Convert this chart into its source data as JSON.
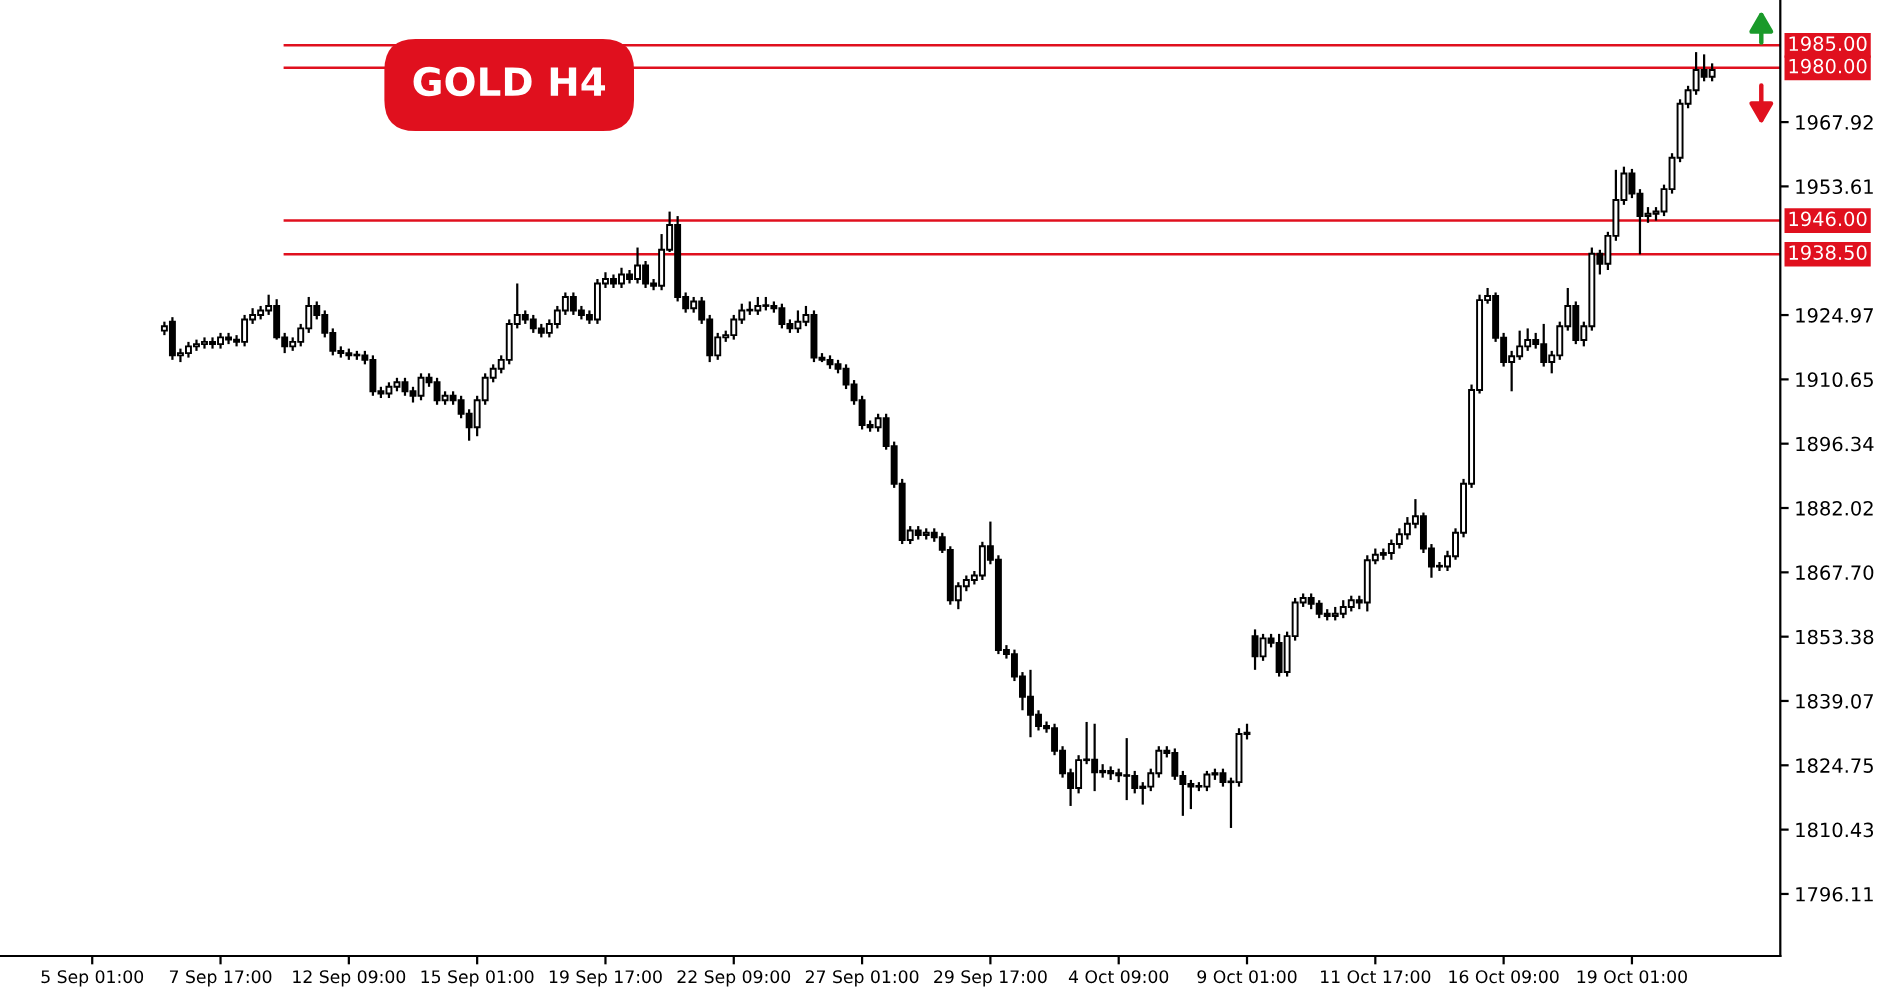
{
  "chart_data": {
    "type": "candlestick",
    "title": "GOLD H4",
    "categories": [
      null,
      null,
      null,
      null,
      null,
      null,
      null,
      null,
      null,
      null,
      null,
      "5 Sep 01:00",
      null,
      null,
      null,
      null,
      null,
      null,
      null,
      null,
      null,
      null,
      null,
      null,
      null,
      null,
      null,
      "7 Sep 17:00",
      null,
      null,
      null,
      null,
      null,
      null,
      null,
      null,
      null,
      null,
      null,
      null,
      null,
      null,
      null,
      "12 Sep 09:00",
      null,
      null,
      null,
      null,
      null,
      null,
      null,
      null,
      null,
      null,
      null,
      null,
      null,
      null,
      null,
      "15 Sep 01:00",
      null,
      null,
      null,
      null,
      null,
      null,
      null,
      null,
      null,
      null,
      null,
      null,
      null,
      null,
      null,
      "19 Sep 17:00",
      null,
      null,
      null,
      null,
      null,
      null,
      null,
      null,
      null,
      null,
      null,
      null,
      null,
      null,
      null,
      "22 Sep 09:00",
      null,
      null,
      null,
      null,
      null,
      null,
      null,
      null,
      null,
      null,
      null,
      null,
      null,
      null,
      null,
      "27 Sep 01:00",
      null,
      null,
      null,
      null,
      null,
      null,
      null,
      null,
      null,
      null,
      null,
      null,
      null,
      null,
      null,
      "29 Sep 17:00",
      null,
      null,
      null,
      null,
      null,
      null,
      null,
      null,
      null,
      null,
      null,
      null,
      null,
      null,
      null,
      "4 Oct 09:00",
      null,
      null,
      null,
      null,
      null,
      null,
      null,
      null,
      null,
      null,
      null,
      null,
      null,
      null,
      null,
      "9 Oct 01:00",
      null,
      null,
      null,
      null,
      null,
      null,
      null,
      null,
      null,
      null,
      null,
      null,
      null,
      null,
      null,
      "11 Oct 17:00",
      null,
      null,
      null,
      null,
      null,
      null,
      null,
      null,
      null,
      null,
      null,
      null,
      null,
      null,
      null,
      "16 Oct 09:00",
      null,
      null,
      null,
      null,
      null,
      null,
      null,
      null,
      null,
      null,
      null,
      null,
      null,
      null,
      null,
      "19 Oct 01:00",
      null,
      null,
      null,
      null,
      null,
      null,
      null,
      null,
      null,
      null,
      null,
      null,
      null,
      null,
      null,
      null,
      null,
      null
    ],
    "ohlc": [
      null,
      null,
      null,
      null,
      null,
      null,
      null,
      null,
      null,
      null,
      null,
      null,
      null,
      null,
      null,
      null,
      null,
      null,
      null,
      null,
      [
        1921.5,
        1923.5,
        1920.5,
        1922.5
      ],
      [
        1923.5,
        1924.5,
        1915,
        1916
      ],
      [
        1916,
        1917.5,
        1914.5,
        1916.5
      ],
      [
        1916.5,
        1919,
        1915.5,
        1918
      ],
      [
        1918,
        1919.5,
        1917,
        1918.5
      ],
      [
        1918.5,
        1920,
        1917.5,
        1919
      ],
      [
        1919,
        1920,
        1917.5,
        1918.5
      ],
      [
        1918.5,
        1921,
        1917.5,
        1920
      ],
      [
        1920,
        1921,
        1918.5,
        1919.5
      ],
      [
        1919.5,
        1920.5,
        1918,
        1919
      ],
      [
        1919,
        1925,
        1918,
        1924
      ],
      [
        1924,
        1926.5,
        1923,
        1925
      ],
      [
        1925,
        1927,
        1924,
        1926
      ],
      [
        1926,
        1929.5,
        1925,
        1927
      ],
      [
        1927,
        1928.5,
        1919.5,
        1920
      ],
      [
        1920,
        1921,
        1916.5,
        1918
      ],
      [
        1918,
        1920,
        1917,
        1919
      ],
      [
        1919,
        1923,
        1918,
        1922
      ],
      [
        1922,
        1929,
        1921,
        1927
      ],
      [
        1927,
        1928,
        1924,
        1925
      ],
      [
        1925,
        1926,
        1920,
        1921
      ],
      [
        1921,
        1922,
        1916,
        1917
      ],
      [
        1917,
        1918,
        1915.5,
        1916.5
      ],
      [
        1916.5,
        1917.5,
        1915,
        1916
      ],
      [
        1916,
        1917,
        1915,
        1916
      ],
      [
        1916,
        1917,
        1914,
        1915
      ],
      [
        1915,
        1916,
        1907,
        1908
      ],
      [
        1908,
        1909,
        1906.5,
        1907.5
      ],
      [
        1907.5,
        1910,
        1906.5,
        1909
      ],
      [
        1909,
        1911,
        1908,
        1910
      ],
      [
        1910,
        1911,
        1907,
        1908
      ],
      [
        1908,
        1909,
        1905.5,
        1907
      ],
      [
        1907,
        1912,
        1906,
        1911
      ],
      [
        1911,
        1912,
        1909,
        1910
      ],
      [
        1910,
        1911,
        1905,
        1906
      ],
      [
        1906,
        1908,
        1905,
        1907
      ],
      [
        1907,
        1908,
        1905,
        1906
      ],
      [
        1906,
        1907,
        1902,
        1903
      ],
      [
        1903,
        1904,
        1897,
        1900
      ],
      [
        1900,
        1907,
        1898,
        1906
      ],
      [
        1906,
        1912,
        1905,
        1911
      ],
      [
        1911,
        1914,
        1910,
        1913
      ],
      [
        1913,
        1916,
        1912,
        1915
      ],
      [
        1915,
        1924,
        1914,
        1923
      ],
      [
        1923,
        1932,
        1922,
        1925
      ],
      [
        1925,
        1926,
        1923,
        1924
      ],
      [
        1924,
        1925,
        1921,
        1922
      ],
      [
        1922,
        1923,
        1920,
        1921
      ],
      [
        1921,
        1924,
        1920,
        1923
      ],
      [
        1923,
        1927,
        1922,
        1926
      ],
      [
        1926,
        1930,
        1925,
        1929
      ],
      [
        1929,
        1930,
        1925,
        1926
      ],
      [
        1926,
        1927,
        1924,
        1925
      ],
      [
        1925,
        1926,
        1923,
        1924
      ],
      [
        1924,
        1933,
        1923,
        1932
      ],
      [
        1932,
        1934.5,
        1931,
        1933
      ],
      [
        1933,
        1934,
        1931,
        1932
      ],
      [
        1932,
        1935.5,
        1931,
        1934
      ],
      [
        1934,
        1935,
        1932,
        1933
      ],
      [
        1933,
        1940,
        1932,
        1936
      ],
      [
        1936,
        1937,
        1931,
        1932
      ],
      [
        1932,
        1933,
        1930.5,
        1931.5
      ],
      [
        1931.5,
        1943,
        1930.5,
        1939.5
      ],
      [
        1939.5,
        1948,
        1939,
        1945
      ],
      [
        1945,
        1947,
        1928,
        1929
      ],
      [
        1929,
        1930,
        1925.5,
        1926.5
      ],
      [
        1926.5,
        1929,
        1925.5,
        1928
      ],
      [
        1928,
        1929,
        1923,
        1924
      ],
      [
        1924,
        1925,
        1914.5,
        1916
      ],
      [
        1916,
        1921,
        1915,
        1920
      ],
      [
        1920,
        1921.5,
        1919,
        1920.5
      ],
      [
        1920.5,
        1925,
        1919.5,
        1924
      ],
      [
        1924,
        1927.5,
        1923,
        1926
      ],
      [
        1926,
        1928,
        1925,
        1926
      ],
      [
        1926,
        1929,
        1925,
        1927
      ],
      [
        1927,
        1929,
        1926,
        1927
      ],
      [
        1927,
        1928,
        1925.5,
        1926.5
      ],
      [
        1926.5,
        1927.5,
        1922,
        1923
      ],
      [
        1923,
        1924,
        1921,
        1922
      ],
      [
        1922,
        1926,
        1921,
        1923.5
      ],
      [
        1923.5,
        1927,
        1922.5,
        1925
      ],
      [
        1925,
        1926,
        1914.5,
        1915.5
      ],
      [
        1915.5,
        1916.5,
        1914.5,
        1915
      ],
      [
        1915,
        1916,
        1913,
        1914
      ],
      [
        1914,
        1915,
        1912,
        1913
      ],
      [
        1913,
        1914,
        1908.5,
        1909.5
      ],
      [
        1909.5,
        1910.5,
        1905,
        1906
      ],
      [
        1906,
        1907,
        1899.5,
        1900.5
      ],
      [
        1900.5,
        1901.5,
        1899,
        1900
      ],
      [
        1900,
        1903,
        1899,
        1902
      ],
      [
        1902,
        1903,
        1895,
        1895.8
      ],
      [
        1895.8,
        1896.8,
        1886.5,
        1887.4
      ],
      [
        1887.4,
        1888.5,
        1874,
        1874.9
      ],
      [
        1874.9,
        1878,
        1874,
        1877
      ],
      [
        1877,
        1878,
        1875,
        1876
      ],
      [
        1876,
        1877.5,
        1875,
        1876.5
      ],
      [
        1876.5,
        1877.5,
        1874.5,
        1875.5
      ],
      [
        1875.5,
        1876.5,
        1872,
        1872.7
      ],
      [
        1872.7,
        1873.5,
        1860.5,
        1861.5
      ],
      [
        1861.5,
        1865.5,
        1859.5,
        1864.6
      ],
      [
        1864.6,
        1867,
        1863.5,
        1866
      ],
      [
        1866,
        1868,
        1865,
        1867
      ],
      [
        1867,
        1874.5,
        1866,
        1873.5
      ],
      [
        1873.5,
        1879,
        1869.5,
        1870.5
      ],
      [
        1870.5,
        1871.5,
        1849.5,
        1850.4
      ],
      [
        1850.4,
        1851.5,
        1848.5,
        1849.5
      ],
      [
        1849.5,
        1850.5,
        1843.5,
        1844.5
      ],
      [
        1844.5,
        1845.5,
        1837,
        1840
      ],
      [
        1840,
        1846,
        1831,
        1836
      ],
      [
        1836,
        1837,
        1832.5,
        1833.5
      ],
      [
        1833.5,
        1834.5,
        1832,
        1833
      ],
      [
        1833,
        1834,
        1827,
        1828
      ],
      [
        1828,
        1829,
        1822,
        1823
      ],
      [
        1823,
        1824,
        1815.7,
        1819.7
      ],
      [
        1819.7,
        1827,
        1818.5,
        1825.9
      ],
      [
        1825.9,
        1834.4,
        1825,
        1826
      ],
      [
        1826,
        1834,
        1819,
        1823.2
      ],
      [
        1823.2,
        1825,
        1822,
        1823.5
      ],
      [
        1823.5,
        1824.5,
        1821.5,
        1823
      ],
      [
        1823,
        1824,
        1821,
        1822.5
      ],
      [
        1822.5,
        1830.8,
        1817,
        1822.4
      ],
      [
        1822.4,
        1823.5,
        1818.5,
        1819.7
      ],
      [
        1819.7,
        1821,
        1816,
        1820
      ],
      [
        1820,
        1824,
        1819,
        1823
      ],
      [
        1823,
        1829,
        1822,
        1828
      ],
      [
        1828,
        1829,
        1826.5,
        1827.5
      ],
      [
        1827.5,
        1828.5,
        1821.5,
        1822.4
      ],
      [
        1822.4,
        1823.5,
        1813.5,
        1820.6
      ],
      [
        1820.6,
        1821.5,
        1815,
        1820
      ],
      [
        1820,
        1821,
        1819,
        1820
      ],
      [
        1820,
        1823.5,
        1819,
        1822.7
      ],
      [
        1822.7,
        1824,
        1821.5,
        1823
      ],
      [
        1823,
        1824,
        1820,
        1821
      ],
      [
        1821,
        1822,
        1810.8,
        1821
      ],
      [
        1821,
        1833,
        1820,
        1831.7
      ],
      [
        1831.7,
        1834,
        1830.5,
        1832
      ],
      [
        1853.5,
        1855,
        1846,
        1849
      ],
      [
        1849,
        1854,
        1848,
        1853
      ],
      [
        1853,
        1854,
        1851,
        1852
      ],
      [
        1852,
        1854,
        1844.5,
        1845.5
      ],
      [
        1845.5,
        1854.5,
        1844.5,
        1853.5
      ],
      [
        1853.5,
        1862,
        1852.5,
        1861
      ],
      [
        1861,
        1863,
        1860,
        1862
      ],
      [
        1862,
        1863,
        1859.5,
        1860.7
      ],
      [
        1860.7,
        1861.5,
        1857.5,
        1858.5
      ],
      [
        1858.5,
        1859.5,
        1857,
        1858
      ],
      [
        1858,
        1860,
        1857,
        1858.5
      ],
      [
        1858.5,
        1861.5,
        1857.5,
        1860
      ],
      [
        1860,
        1862.5,
        1859,
        1861.5
      ],
      [
        1861.5,
        1862.5,
        1859.5,
        1861
      ],
      [
        1861,
        1871.5,
        1859,
        1870.4
      ],
      [
        1870.4,
        1873,
        1869.5,
        1871.6
      ],
      [
        1871.6,
        1873,
        1870.5,
        1872
      ],
      [
        1872,
        1875,
        1870.5,
        1874
      ],
      [
        1874,
        1877.5,
        1873,
        1876.2
      ],
      [
        1876.2,
        1880,
        1875,
        1878.5
      ],
      [
        1878.5,
        1884,
        1877.5,
        1880.2
      ],
      [
        1880.2,
        1881,
        1872,
        1873
      ],
      [
        1873,
        1874,
        1866.5,
        1869
      ],
      [
        1869,
        1870,
        1868,
        1869
      ],
      [
        1869,
        1872.5,
        1868,
        1871.3
      ],
      [
        1871.3,
        1877.5,
        1870.5,
        1876.5
      ],
      [
        1876.5,
        1888.5,
        1875.5,
        1887.4
      ],
      [
        1887.4,
        1909.5,
        1886.5,
        1908.3
      ],
      [
        1908.3,
        1929.5,
        1907.5,
        1928.3
      ],
      [
        1928.3,
        1931,
        1927.5,
        1929.2
      ],
      [
        1929.2,
        1930,
        1919,
        1919.9
      ],
      [
        1919.9,
        1921,
        1913.5,
        1914.5
      ],
      [
        1914.5,
        1917,
        1908,
        1915.8
      ],
      [
        1915.8,
        1921.5,
        1915,
        1918
      ],
      [
        1918,
        1922,
        1917,
        1919.4
      ],
      [
        1919.4,
        1921,
        1917.5,
        1918.5
      ],
      [
        1918.5,
        1923,
        1913.5,
        1914.5
      ],
      [
        1914.5,
        1917,
        1912,
        1916
      ],
      [
        1916,
        1923.5,
        1915,
        1922.5
      ],
      [
        1922.5,
        1931,
        1921.5,
        1927
      ],
      [
        1927,
        1928,
        1918.5,
        1919.4
      ],
      [
        1919.4,
        1923.5,
        1918,
        1922.5
      ],
      [
        1922.5,
        1940,
        1921.5,
        1938.6
      ],
      [
        1938.6,
        1939.5,
        1934,
        1936.4
      ],
      [
        1936.4,
        1943.5,
        1935,
        1942.6
      ],
      [
        1942.6,
        1957.3,
        1941.5,
        1950.6
      ],
      [
        1950.6,
        1958,
        1949.5,
        1956.5
      ],
      [
        1956.5,
        1957.5,
        1951,
        1952
      ],
      [
        1952,
        1953,
        1938.5,
        1947
      ],
      [
        1947,
        1949,
        1945.5,
        1947.5
      ],
      [
        1947.5,
        1949,
        1946,
        1948
      ],
      [
        1948,
        1954,
        1947,
        1953
      ],
      [
        1953,
        1961,
        1952,
        1960
      ],
      [
        1960,
        1973,
        1959,
        1972
      ],
      [
        1972,
        1976,
        1971,
        1975
      ],
      [
        1975,
        1983.5,
        1974,
        1979.5
      ],
      [
        1979.5,
        1983,
        1977,
        1978
      ],
      [
        1978,
        1981,
        1977,
        1979.5
      ],
      null,
      null,
      null,
      null,
      null,
      null,
      null,
      null
    ],
    "ylim": [
      1782.3,
      1995.1
    ],
    "yticks": [
      1796.11,
      1810.43,
      1824.75,
      1839.07,
      1853.38,
      {
        "value": 1867.7,
        "label": "1867.70"
      },
      1882.02,
      1896.34,
      1910.65,
      1924.97,
      1953.61,
      1967.92
    ],
    "ref_lines": [
      {
        "axis": "y",
        "value": 1985,
        "label": "1985.00",
        "color": "#e0101e"
      },
      {
        "axis": "y",
        "value": 1980,
        "label": "1980.00",
        "color": "#e0101e"
      },
      {
        "axis": "y",
        "value": 1946,
        "label": "1946.00",
        "color": "#e0101e"
      },
      {
        "axis": "y",
        "value": 1938.5,
        "label": "1938.50",
        "color": "#e0101e"
      }
    ]
  }
}
